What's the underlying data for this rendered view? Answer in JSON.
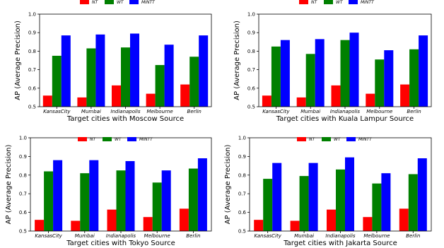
{
  "chart_data": [
    {
      "type": "bar",
      "categories": [
        "KansasCity",
        "Mumbai",
        "Indianapolis",
        "Melbourne",
        "Berlin"
      ],
      "series": [
        {
          "name": "NT",
          "values": [
            0.56,
            0.55,
            0.615,
            0.57,
            0.62
          ]
        },
        {
          "name": "WT",
          "values": [
            0.775,
            0.815,
            0.82,
            0.725,
            0.77
          ]
        },
        {
          "name": "MINTT",
          "values": [
            0.885,
            0.89,
            0.895,
            0.835,
            0.885
          ]
        }
      ],
      "xlabel": "Target cities with Moscow Source",
      "ylabel": "AP (Average Precision)",
      "ylim": [
        0.5,
        1.0
      ],
      "yticks": [
        "0.5",
        "0.6",
        "0.7",
        "0.8",
        "0.9",
        "1.0"
      ],
      "legend": "top-center"
    },
    {
      "type": "bar",
      "categories": [
        "KansasCity",
        "Mumbai",
        "Indianapolis",
        "Melbourne",
        "Berlin"
      ],
      "series": [
        {
          "name": "NT",
          "values": [
            0.56,
            0.55,
            0.615,
            0.57,
            0.62
          ]
        },
        {
          "name": "WT",
          "values": [
            0.825,
            0.785,
            0.86,
            0.755,
            0.81
          ]
        },
        {
          "name": "MINTT",
          "values": [
            0.86,
            0.865,
            0.9,
            0.805,
            0.885
          ]
        }
      ],
      "xlabel": "Target cities with Kuala Lampur Source",
      "ylabel": "AP (Average Precision)",
      "ylim": [
        0.5,
        1.0
      ],
      "yticks": [
        "0.5",
        "0.6",
        "0.7",
        "0.8",
        "0.9",
        "1.0"
      ],
      "legend": "top-center"
    },
    {
      "type": "bar",
      "categories": [
        "KansasCity",
        "Mumbai",
        "Indianapolis",
        "Melbourne",
        "Berlin"
      ],
      "series": [
        {
          "name": "NT",
          "values": [
            0.56,
            0.555,
            0.615,
            0.575,
            0.62
          ]
        },
        {
          "name": "WT",
          "values": [
            0.82,
            0.81,
            0.825,
            0.76,
            0.835
          ]
        },
        {
          "name": "MINTT",
          "values": [
            0.88,
            0.88,
            0.875,
            0.825,
            0.89
          ]
        }
      ],
      "xlabel": "Target cities with Tokyo Source",
      "ylabel": "AP (Average Precision)",
      "ylim": [
        0.5,
        1.0
      ],
      "yticks": [
        "0.5",
        "0.6",
        "0.7",
        "0.8",
        "0.9",
        "1.0"
      ],
      "legend": "top-center"
    },
    {
      "type": "bar",
      "categories": [
        "KansasCity",
        "Mumbai",
        "Indianapolis",
        "Melbourne",
        "Berlin"
      ],
      "series": [
        {
          "name": "NT",
          "values": [
            0.56,
            0.555,
            0.615,
            0.575,
            0.62
          ]
        },
        {
          "name": "WT",
          "values": [
            0.78,
            0.795,
            0.83,
            0.755,
            0.805
          ]
        },
        {
          "name": "MINTT",
          "values": [
            0.865,
            0.865,
            0.895,
            0.81,
            0.89
          ]
        }
      ],
      "xlabel": "Target cities with Jakarta Source",
      "ylabel": "AP (Average Precision)",
      "ylim": [
        0.5,
        1.0
      ],
      "yticks": [
        "0.5",
        "0.6",
        "0.7",
        "0.8",
        "0.9",
        "1.0"
      ],
      "legend": "top-center"
    }
  ],
  "colors": {
    "NT": "#ff0000",
    "WT": "#008000",
    "MINTT": "#0000ff"
  }
}
